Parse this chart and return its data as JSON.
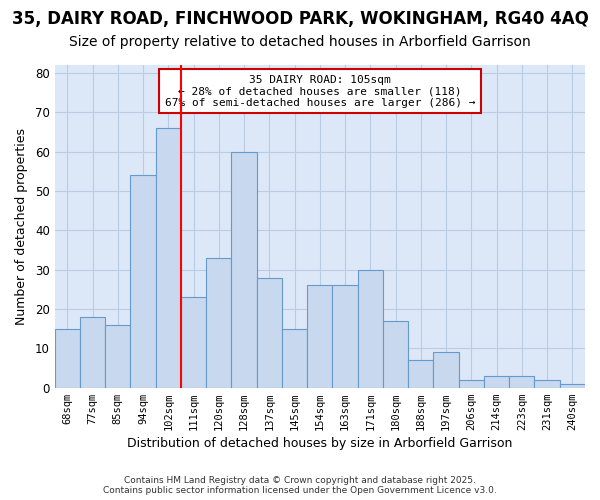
{
  "title1": "35, DAIRY ROAD, FINCHWOOD PARK, WOKINGHAM, RG40 4AQ",
  "title2": "Size of property relative to detached houses in Arborfield Garrison",
  "xlabel": "Distribution of detached houses by size in Arborfield Garrison",
  "ylabel": "Number of detached properties",
  "categories": [
    "68sqm",
    "77sqm",
    "85sqm",
    "94sqm",
    "102sqm",
    "111sqm",
    "120sqm",
    "128sqm",
    "137sqm",
    "145sqm",
    "154sqm",
    "163sqm",
    "171sqm",
    "180sqm",
    "188sqm",
    "197sqm",
    "206sqm",
    "214sqm",
    "223sqm",
    "231sqm",
    "240sqm"
  ],
  "bar_heights": [
    15,
    18,
    16,
    54,
    66,
    23,
    33,
    60,
    28,
    15,
    26,
    26,
    30,
    17,
    7,
    9,
    2,
    3,
    3,
    2,
    1
  ],
  "bar_color": "#c8d8ee",
  "bar_edge_color": "#6699cc",
  "red_line_x": 4.5,
  "annotation_title": "35 DAIRY ROAD: 105sqm",
  "annotation_line1": "← 28% of detached houses are smaller (118)",
  "annotation_line2": "67% of semi-detached houses are larger (286) →",
  "annotation_box_color": "#ffffff",
  "annotation_border_color": "#cc0000",
  "ylim": [
    0,
    82
  ],
  "yticks": [
    0,
    10,
    20,
    30,
    40,
    50,
    60,
    70,
    80
  ],
  "footer1": "Contains HM Land Registry data © Crown copyright and database right 2025.",
  "footer2": "Contains public sector information licensed under the Open Government Licence v3.0.",
  "plot_bg_color": "#dce8f8",
  "fig_bg_color": "#ffffff",
  "grid_color": "#b8cce4",
  "title_fontsize": 12,
  "subtitle_fontsize": 10
}
